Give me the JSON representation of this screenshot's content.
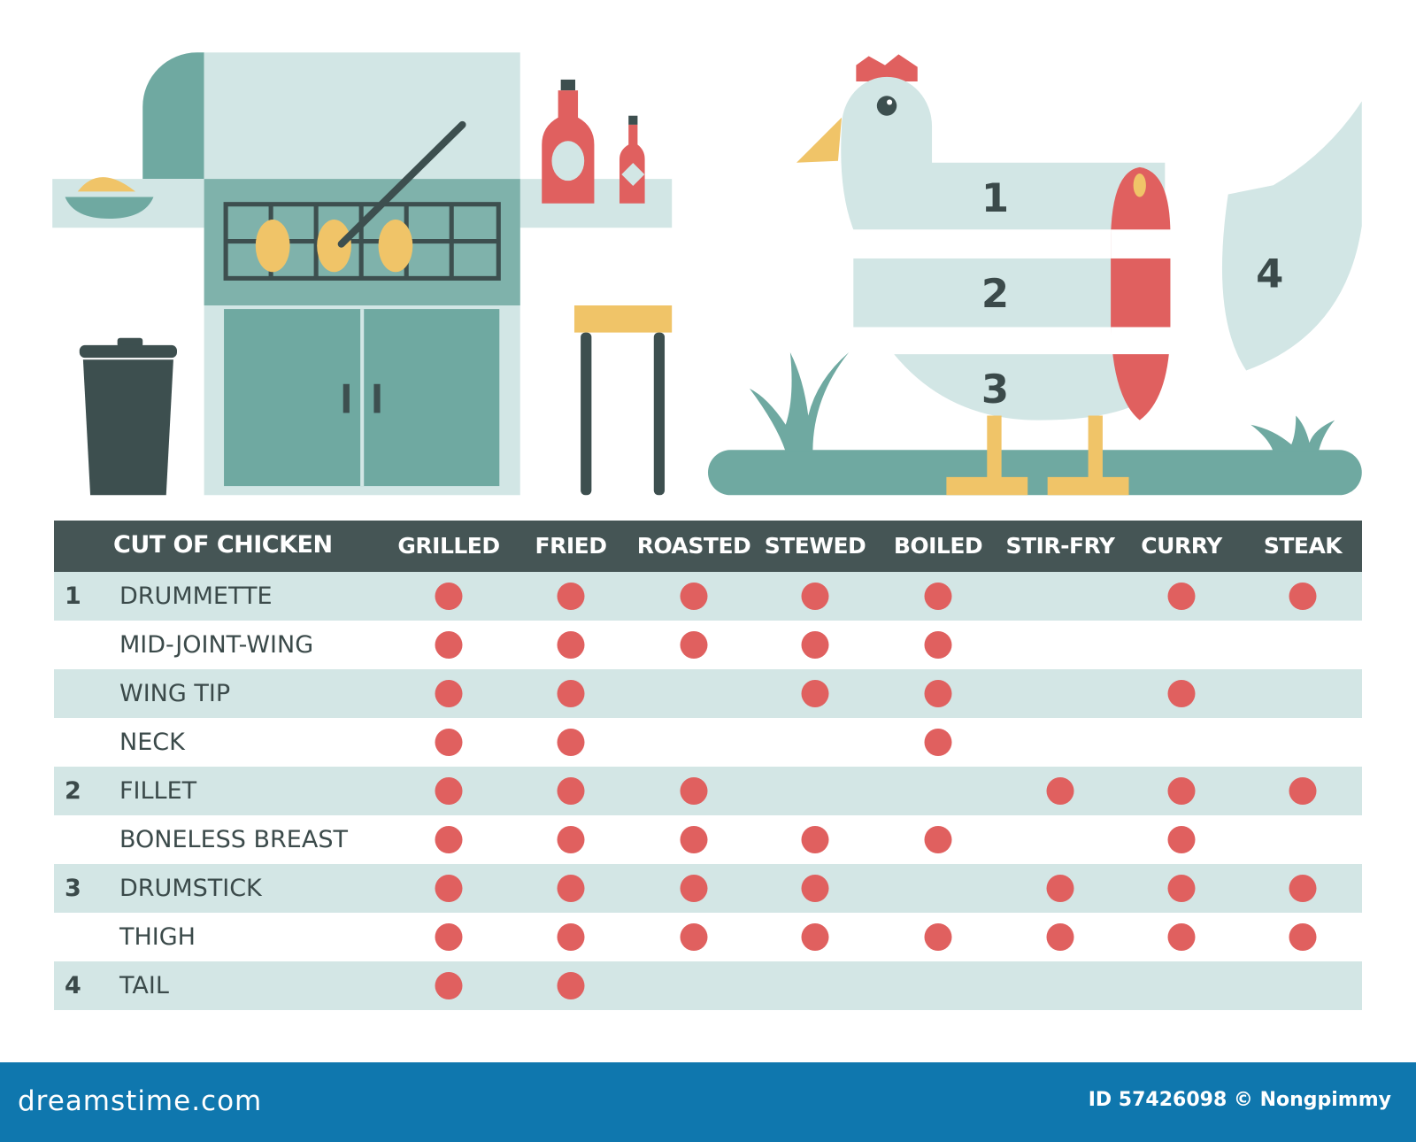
{
  "colors": {
    "header_bg": "#455555",
    "row_shade": "#d3e6e5",
    "dot": "#e0605f",
    "teal": "#6fa9a1",
    "light": "#d2e6e5",
    "yellow": "#f0c468",
    "footer": "#0f77ae"
  },
  "diagram": {
    "labels": [
      "1",
      "2",
      "3",
      "4"
    ]
  },
  "table": {
    "header": "CUT OF CHICKEN",
    "columns": [
      "GRILLED",
      "FRIED",
      "ROASTED",
      "STEWED",
      "BOILED",
      "STIR-FRY",
      "CURRY",
      "STEAK"
    ],
    "rows": [
      {
        "num": "1",
        "name": "DRUMMETTE",
        "marks": [
          1,
          1,
          1,
          1,
          1,
          0,
          1,
          1
        ]
      },
      {
        "num": "",
        "name": "MID-JOINT-WING",
        "marks": [
          1,
          1,
          1,
          1,
          1,
          0,
          0,
          0
        ]
      },
      {
        "num": "",
        "name": "WING TIP",
        "marks": [
          1,
          1,
          0,
          1,
          1,
          0,
          1,
          0
        ]
      },
      {
        "num": "",
        "name": "NECK",
        "marks": [
          1,
          1,
          0,
          0,
          1,
          0,
          0,
          0
        ]
      },
      {
        "num": "2",
        "name": "FILLET",
        "marks": [
          1,
          1,
          1,
          0,
          0,
          1,
          1,
          1
        ]
      },
      {
        "num": "",
        "name": "BONELESS BREAST",
        "marks": [
          1,
          1,
          1,
          1,
          1,
          0,
          1,
          0
        ]
      },
      {
        "num": "3",
        "name": "DRUMSTICK",
        "marks": [
          1,
          1,
          1,
          1,
          0,
          1,
          1,
          1
        ]
      },
      {
        "num": "",
        "name": "THIGH",
        "marks": [
          1,
          1,
          1,
          1,
          1,
          1,
          1,
          1
        ]
      },
      {
        "num": "4",
        "name": "TAIL",
        "marks": [
          1,
          1,
          0,
          0,
          0,
          0,
          0,
          0
        ]
      }
    ]
  },
  "footer": {
    "logo": "dreamstime.com",
    "credit": "ID 57426098 © Nongpimmy"
  }
}
